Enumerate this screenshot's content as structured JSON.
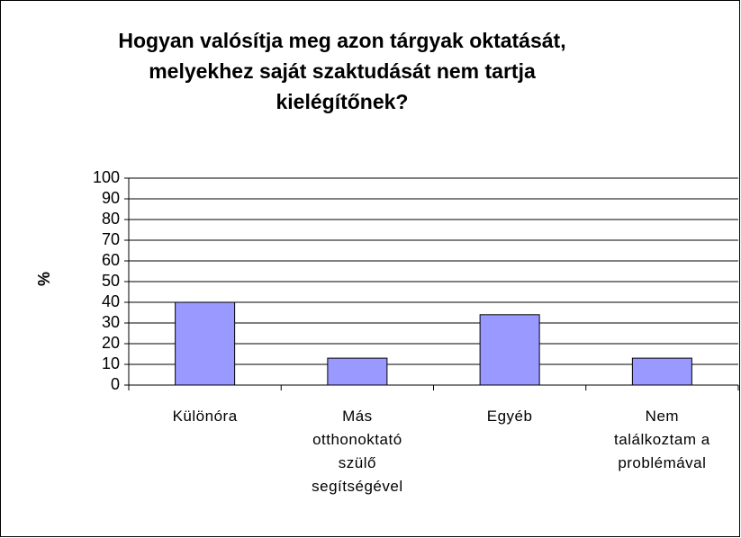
{
  "chart_data": {
    "type": "bar",
    "title": "Hogyan valósítja meg azon tárgyak oktatását, melyekhez saját szaktudását nem tartja kielégítőnek?",
    "y_label": "%",
    "categories": [
      "Különóra",
      "Más otthonoktató szülő segítségével",
      "Egyéb",
      "Nem találkoztam a problémával"
    ],
    "values": [
      40,
      13,
      34,
      13
    ],
    "color": "#9999ff",
    "ylim": [
      0,
      100
    ],
    "yticks": [
      0,
      10,
      20,
      30,
      40,
      50,
      60,
      70,
      80,
      90,
      100
    ],
    "grid": true
  }
}
